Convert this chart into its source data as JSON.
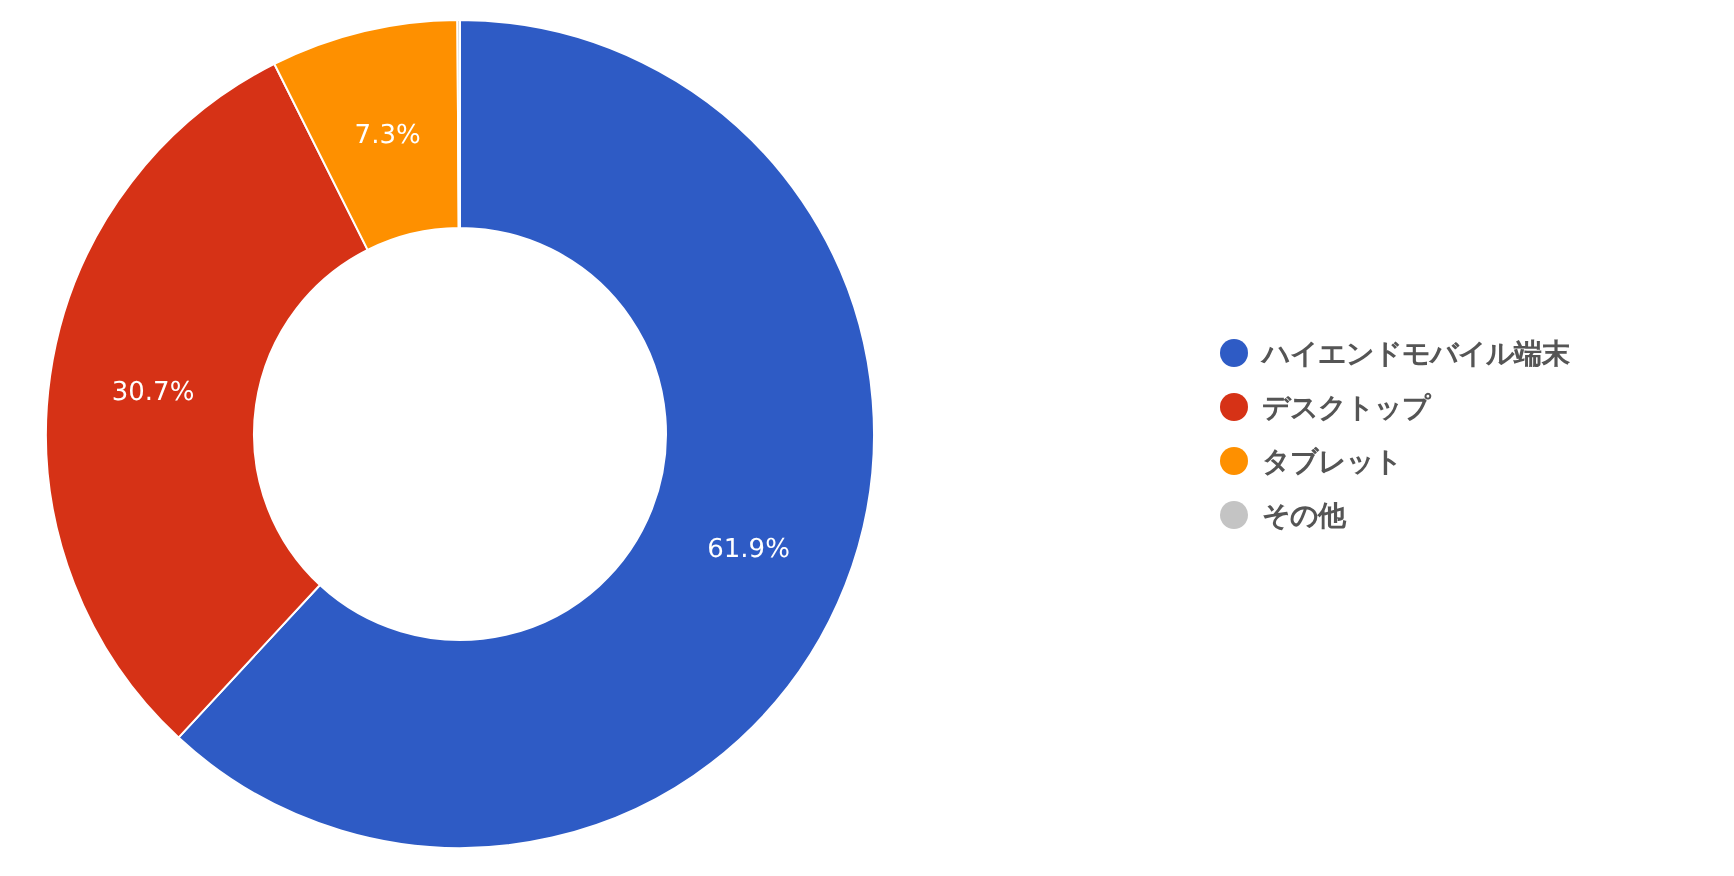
{
  "chart_data": {
    "type": "donut",
    "categories": [
      "ハイエンドモバイル端末",
      "デスクトップ",
      "タブレット",
      "その他"
    ],
    "values": [
      61.9,
      30.7,
      7.3,
      0.1
    ],
    "colors": [
      "#2e5bc5",
      "#d63216",
      "#fe9000",
      "#c4c4c4"
    ],
    "value_labels": [
      "61.9%",
      "30.7%",
      "7.3%",
      null
    ],
    "legend": "right"
  }
}
